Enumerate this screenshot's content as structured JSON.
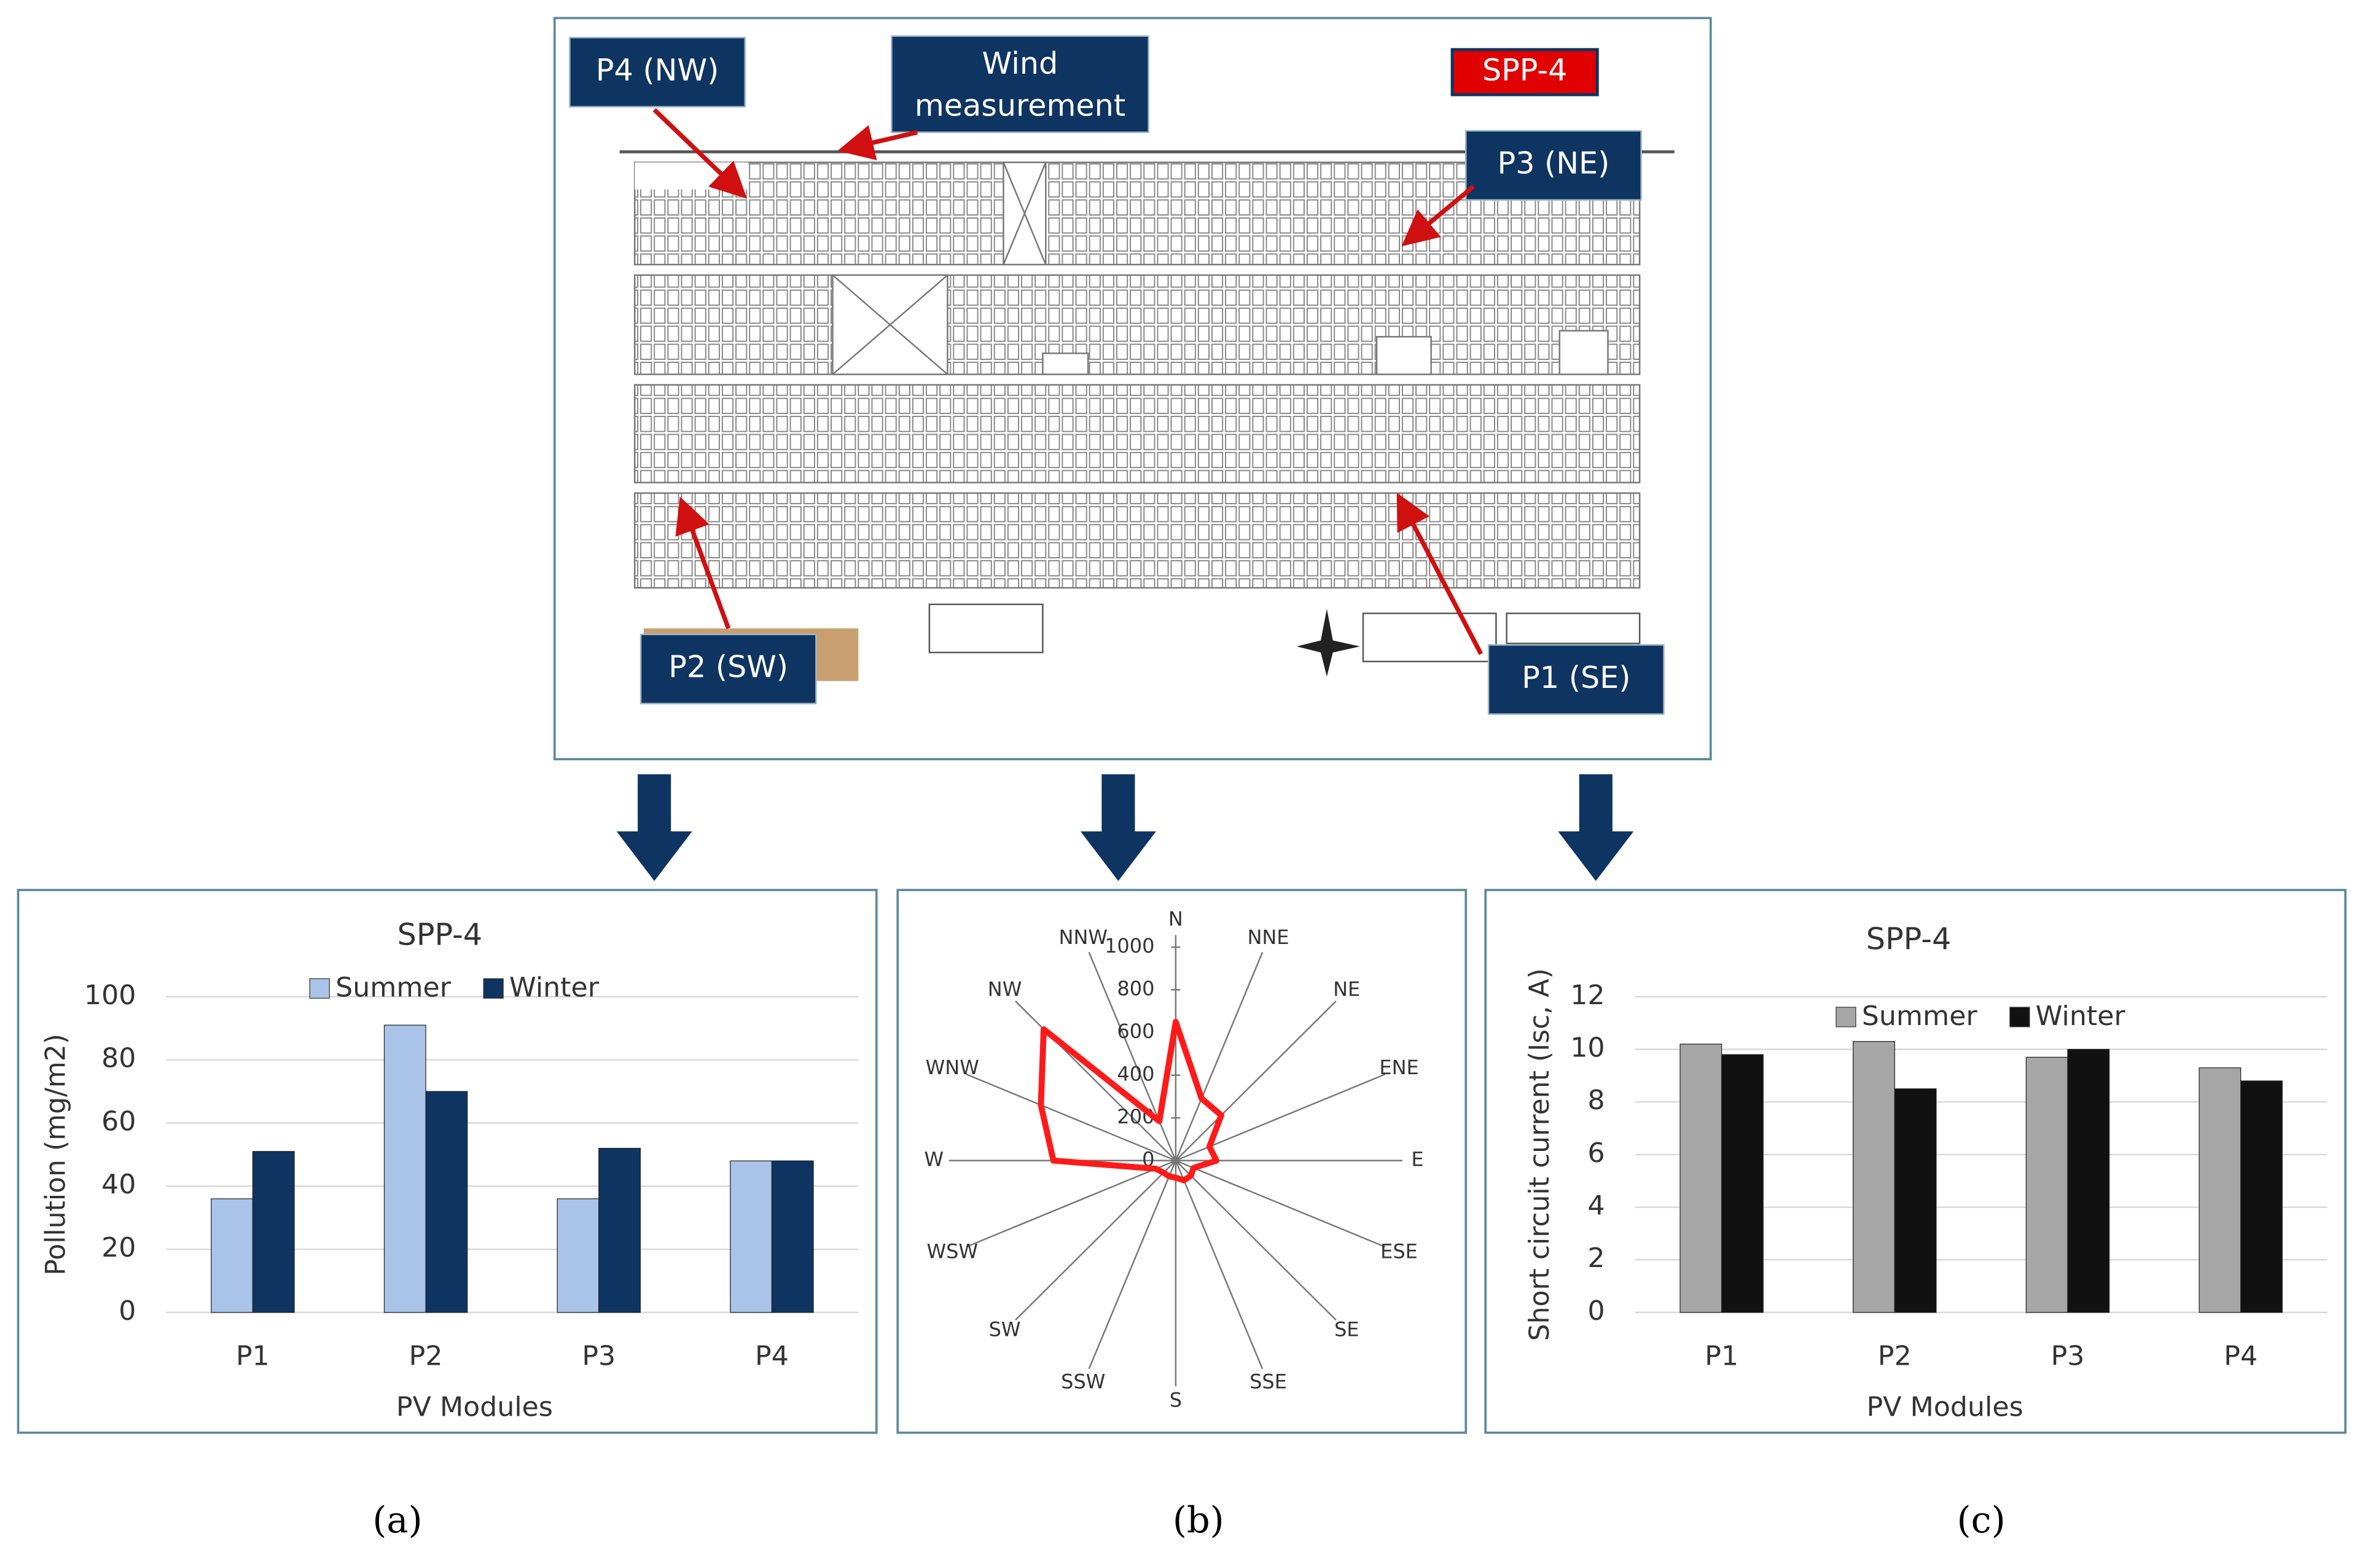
{
  "site_plan": {
    "title": "SPP-4",
    "labels": [
      "P4 (NW)",
      "Wind measurement",
      "P3 (NE)",
      "P2 (SW)",
      "P1 (SE)"
    ]
  },
  "chart_data": [
    {
      "type": "bar",
      "title": "SPP-4",
      "x_label": "PV Modules",
      "y_label": "Pollution (mg/m2)",
      "categories": [
        "P1",
        "P2",
        "P3",
        "P4"
      ],
      "series": [
        {
          "name": "Summer",
          "color": "#a9c4e8",
          "values": [
            36,
            91,
            36,
            48
          ]
        },
        {
          "name": "Winter",
          "color": "#0e3461",
          "values": [
            51,
            70,
            52,
            48
          ]
        }
      ],
      "ylim": [
        0,
        100
      ],
      "yticks": [
        0,
        20,
        40,
        60,
        80,
        100
      ],
      "grid": true
    },
    {
      "type": "radar",
      "categories": [
        "N",
        "NNE",
        "NE",
        "ENE",
        "E",
        "ESE",
        "SE",
        "SSE",
        "S",
        "SSW",
        "SW",
        "WSW",
        "W",
        "WNW",
        "NW",
        "NNW"
      ],
      "values": [
        650,
        315,
        300,
        170,
        190,
        90,
        100,
        100,
        80,
        80,
        80,
        100,
        570,
        680,
        870,
        200
      ],
      "color": "#ff1a1a",
      "ylim": [
        0,
        1000
      ],
      "yticks": [
        0,
        200,
        400,
        600,
        800,
        1000
      ]
    },
    {
      "type": "bar",
      "title": "SPP-4",
      "x_label": "PV Modules",
      "y_label": "Short circuit current (Isc, A)",
      "categories": [
        "P1",
        "P2",
        "P3",
        "P4"
      ],
      "series": [
        {
          "name": "Summer",
          "color": "#a6a6a6",
          "values": [
            10.2,
            10.3,
            9.7,
            9.3
          ]
        },
        {
          "name": "Winter",
          "color": "#111111",
          "values": [
            9.8,
            8.5,
            10.0,
            8.8
          ]
        }
      ],
      "ylim": [
        0,
        12
      ],
      "yticks": [
        0,
        2,
        4,
        6,
        8,
        10,
        12
      ],
      "grid": true
    }
  ],
  "panel_labels": [
    "(a)",
    "(b)",
    "(c)"
  ]
}
